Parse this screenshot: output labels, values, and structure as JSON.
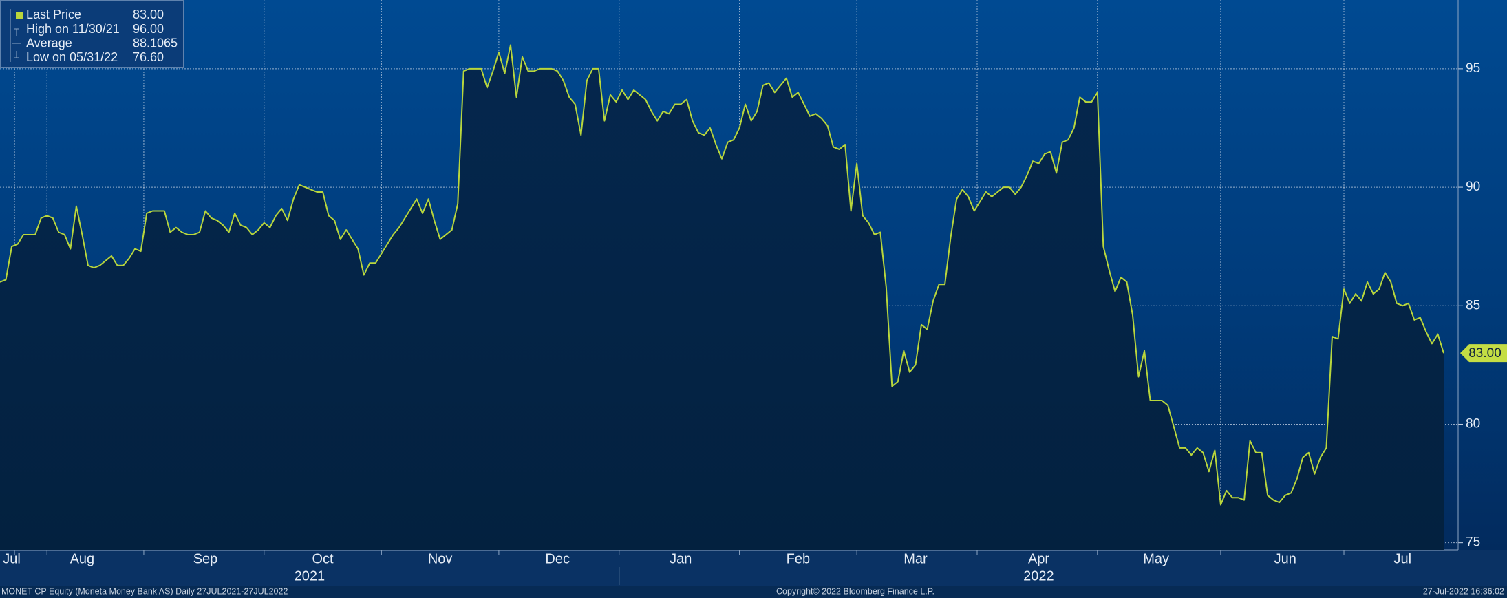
{
  "chart_data": {
    "type": "line",
    "series": [
      {
        "name": "Last Price",
        "color": "#b9d63c",
        "values": [
          86.0,
          86.1,
          87.5,
          87.6,
          88.0,
          88.0,
          88.0,
          88.7,
          88.8,
          88.7,
          88.1,
          88.0,
          87.4,
          89.2,
          88.0,
          86.7,
          86.6,
          86.7,
          86.9,
          87.1,
          86.7,
          86.7,
          87.0,
          87.4,
          87.3,
          88.9,
          89.0,
          89.0,
          89.0,
          88.1,
          88.3,
          88.1,
          88.0,
          88.0,
          88.1,
          89.0,
          88.7,
          88.6,
          88.4,
          88.1,
          88.9,
          88.4,
          88.3,
          88.0,
          88.2,
          88.5,
          88.3,
          88.8,
          89.1,
          88.6,
          89.5,
          90.1,
          90.0,
          89.9,
          89.8,
          89.8,
          88.8,
          88.6,
          87.8,
          88.2,
          87.8,
          87.4,
          86.3,
          86.8,
          86.8,
          87.2,
          87.6,
          88.0,
          88.3,
          88.7,
          89.1,
          89.5,
          88.9,
          89.5,
          88.6,
          87.8,
          88.0,
          88.2,
          89.3,
          94.9,
          95.0,
          95.0,
          95.0,
          94.2,
          94.9,
          95.7,
          94.8,
          96.0,
          93.8,
          95.5,
          94.9,
          94.9,
          95.0,
          95.0,
          95.0,
          94.9,
          94.5,
          93.8,
          93.5,
          92.2,
          94.5,
          95.0,
          95.0,
          92.8,
          93.9,
          93.6,
          94.1,
          93.7,
          94.1,
          93.9,
          93.7,
          93.2,
          92.8,
          93.2,
          93.1,
          93.5,
          93.5,
          93.7,
          92.8,
          92.3,
          92.2,
          92.5,
          91.8,
          91.2,
          91.9,
          92.0,
          92.5,
          93.5,
          92.8,
          93.2,
          94.3,
          94.4,
          94.0,
          94.3,
          94.6,
          93.8,
          94.0,
          93.5,
          93.0,
          93.1,
          92.9,
          92.6,
          91.7,
          91.6,
          91.8,
          89.0,
          91.0,
          88.8,
          88.5,
          88.0,
          88.1,
          85.8,
          81.6,
          81.8,
          83.1,
          82.2,
          82.5,
          84.2,
          84.0,
          85.2,
          85.9,
          85.9,
          87.9,
          89.5,
          89.9,
          89.6,
          89.0,
          89.4,
          89.8,
          89.6,
          89.8,
          90.0,
          90.0,
          89.7,
          90.0,
          90.5,
          91.1,
          91.0,
          91.4,
          91.5,
          90.6,
          91.9,
          92.0,
          92.5,
          93.8,
          93.6,
          93.6,
          94.0,
          87.5,
          86.5,
          85.6,
          86.2,
          86.0,
          84.6,
          82.0,
          83.1,
          81.0,
          81.0,
          81.0,
          80.8,
          79.9,
          79.0,
          79.0,
          78.7,
          79.0,
          78.8,
          78.0,
          78.9,
          76.6,
          77.2,
          76.9,
          76.9,
          76.8,
          79.3,
          78.8,
          78.8,
          77.0,
          76.8,
          76.7,
          77.0,
          77.1,
          77.7,
          78.6,
          78.8,
          77.9,
          78.6,
          79.0,
          83.7,
          83.6,
          85.7,
          85.1,
          85.5,
          85.2,
          86.0,
          85.5,
          85.7,
          86.4,
          86.0,
          85.1,
          85.0,
          85.1,
          84.4,
          84.5,
          83.9,
          83.4,
          83.8,
          83.0
        ]
      }
    ],
    "categories": [
      null,
      null,
      "Jul",
      null,
      null,
      null,
      null,
      null,
      null,
      null,
      null,
      null,
      null,
      null,
      "Aug",
      null,
      null,
      null,
      null,
      null,
      null,
      null,
      null,
      null,
      null,
      null,
      null,
      null,
      null,
      null,
      null,
      null,
      null,
      null,
      null,
      "Sep",
      null,
      null,
      null,
      null,
      null,
      null,
      null,
      null,
      null,
      null,
      null,
      null,
      null,
      null,
      null,
      null,
      null,
      null,
      null,
      "Oct",
      null,
      null,
      null,
      null,
      null,
      null,
      null,
      null,
      null,
      null,
      null,
      null,
      null,
      null,
      null,
      null,
      null,
      null,
      null,
      "Nov",
      null,
      null,
      null,
      null,
      null,
      null,
      null,
      null,
      null,
      null,
      null,
      null,
      null,
      null,
      null,
      null,
      null,
      null,
      null,
      "Dec",
      null,
      null,
      null,
      null,
      null,
      null,
      null,
      null,
      null,
      null,
      null,
      null,
      null,
      null,
      null,
      null,
      null,
      null,
      null,
      null,
      "Jan",
      null,
      null,
      null,
      null,
      null,
      null,
      null,
      null,
      null,
      null,
      null,
      null,
      null,
      null,
      null,
      null,
      null,
      null,
      null,
      "Feb",
      null,
      null,
      null,
      null,
      null,
      null,
      null,
      null,
      null,
      null,
      null,
      null,
      null,
      null,
      null,
      null,
      null,
      null,
      null,
      "Mar",
      null,
      null,
      null,
      null,
      null,
      null,
      null,
      null,
      null,
      null,
      null,
      null,
      null,
      null,
      null,
      null,
      null,
      null,
      null,
      null,
      "Apr",
      null,
      null,
      null,
      null,
      null,
      null,
      null,
      null,
      null,
      null,
      null,
      null,
      null,
      null,
      null,
      null,
      null,
      null,
      null,
      "May",
      null,
      null,
      null,
      null,
      null,
      null,
      null,
      null,
      null,
      null,
      null,
      null,
      null,
      null,
      null,
      null,
      null,
      null,
      null,
      null,
      null,
      "Jun",
      null,
      null,
      null,
      null,
      null,
      null,
      null,
      null,
      null,
      null,
      null,
      null,
      null,
      null,
      null,
      null,
      null,
      null,
      null,
      "Jul",
      null,
      null,
      null,
      null,
      null,
      null,
      null
    ],
    "year_labels": [
      "2021",
      "2022"
    ],
    "ylim": [
      74.7,
      97.9
    ],
    "yticks": [
      75,
      80,
      85,
      90,
      95
    ],
    "grid": true,
    "last_label": {
      "value": 83,
      "label": "83.00"
    },
    "stats": [
      {
        "name": "High on 11/30/21",
        "value": 96,
        "label": "96.00"
      },
      {
        "name": "Average",
        "value": 88.1065,
        "label": "88.1065"
      },
      {
        "name": "Low on 05/31/22",
        "value": 76.6,
        "label": "76.60"
      }
    ],
    "footer": {
      "left": "MONET CP Equity (Moneta Money Bank AS)  Daily 27JUL2021-27JUL2022",
      "center": "Copyright© 2022 Bloomberg Finance L.P.",
      "right": "27-Jul-2022 16:36:02"
    }
  }
}
